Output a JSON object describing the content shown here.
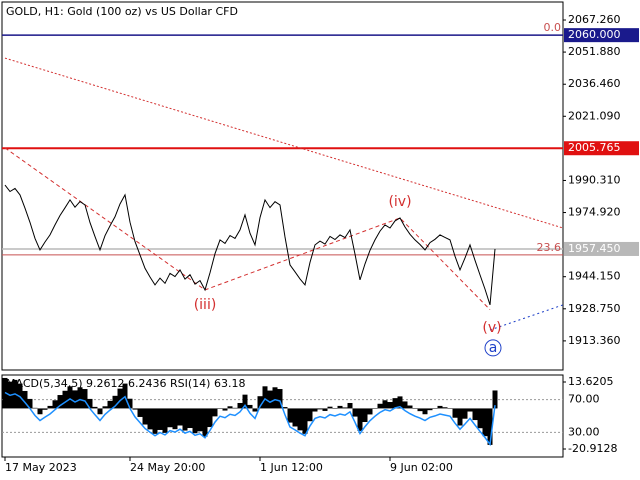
{
  "chart_data": [
    {
      "type": "line",
      "title": "GOLD, H1:  Gold (100 oz) vs US Dollar CFD",
      "color": "#000000",
      "x": [
        0,
        1,
        2,
        3,
        4,
        5,
        6,
        7,
        8,
        9,
        10,
        11,
        12,
        13,
        14,
        15,
        16,
        17,
        18,
        19,
        20,
        21,
        22,
        23,
        24,
        25,
        26,
        27,
        28,
        29,
        30,
        31,
        32,
        33,
        34,
        35,
        36,
        37,
        38,
        39,
        40,
        41,
        42,
        43,
        44,
        45,
        46,
        47,
        48,
        49,
        50,
        51,
        52,
        53,
        54,
        55,
        56,
        57,
        58,
        59,
        60,
        61,
        62,
        63,
        64,
        65,
        66,
        67,
        68,
        69,
        70,
        71,
        72,
        73,
        74,
        75,
        76,
        77,
        78,
        79,
        80,
        81,
        82,
        83,
        84,
        85,
        86,
        87,
        88,
        89,
        90,
        91,
        92,
        93,
        94,
        95,
        96,
        97,
        98
      ],
      "values": [
        1988.1,
        1985.0,
        1986.5,
        1983.4,
        1977.0,
        1970.2,
        1962.5,
        1957.0,
        1960.8,
        1964.2,
        1969.0,
        1973.5,
        1977.2,
        1981.0,
        1977.5,
        1980.2,
        1978.6,
        1970.1,
        1963.4,
        1957.0,
        1963.8,
        1968.5,
        1972.9,
        1979.0,
        1983.4,
        1970.3,
        1961.0,
        1954.6,
        1948.2,
        1944.0,
        1940.2,
        1943.5,
        1941.0,
        1945.8,
        1944.2,
        1947.4,
        1943.0,
        1945.1,
        1940.6,
        1942.3,
        1937.8,
        1946.0,
        1955.2,
        1961.8,
        1960.1,
        1963.9,
        1962.5,
        1966.6,
        1973.8,
        1965.0,
        1959.4,
        1972.5,
        1981.0,
        1977.3,
        1980.1,
        1978.6,
        1963.2,
        1949.8,
        1946.5,
        1943.1,
        1940.2,
        1951.0,
        1959.4,
        1961.2,
        1959.8,
        1963.5,
        1962.0,
        1964.2,
        1962.9,
        1966.6,
        1955.0,
        1942.6,
        1950.3,
        1956.8,
        1961.8,
        1966.0,
        1969.0,
        1967.5,
        1970.9,
        1972.3,
        1968.0,
        1964.5,
        1961.8,
        1959.6,
        1957.0,
        1960.5,
        1962.1,
        1964.2,
        1963.0,
        1961.8,
        1954.0,
        1947.4,
        1953.1,
        1959.4,
        1952.0,
        1945.0,
        1938.2,
        1930.6,
        1957.45
      ],
      "xlim": [
        -0.6,
        111.6
      ],
      "xticks": [
        {
          "value": 0,
          "label": "17 May 2023"
        },
        {
          "value": 25,
          "label": "24 May 20:00"
        },
        {
          "value": 51,
          "label": "1 Jun 12:00"
        },
        {
          "value": 77,
          "label": "9 Jun 02:00"
        }
      ],
      "ylim": [
        1899.4,
        2075.9
      ],
      "yticks": [
        {
          "value": 2067.26,
          "label": "2067.260"
        },
        {
          "value": 2051.88,
          "label": "2051.880"
        },
        {
          "value": 2036.46,
          "label": "2036.460"
        },
        {
          "value": 2021.09,
          "label": "2021.090"
        },
        {
          "value": 1990.31,
          "label": "1990.310"
        },
        {
          "value": 1974.92,
          "label": "1974.920"
        },
        {
          "value": 1944.15,
          "label": "1944.150"
        },
        {
          "value": 1928.75,
          "label": "1928.750"
        },
        {
          "value": 1913.36,
          "label": "1913.360"
        }
      ],
      "levels": [
        {
          "value": 2060,
          "label": "2060.000",
          "color": "#1a1a8c"
        },
        {
          "value": 2005.765,
          "label": "2005.765",
          "color": "#e01010"
        },
        {
          "value": 1957.45,
          "label": "1957.450",
          "color": "#b8b8b8"
        }
      ],
      "fib_levels": [
        {
          "value": 2060,
          "label": "0.0"
        },
        {
          "value": 1954.6,
          "label": "23.6"
        }
      ],
      "fib_color": "#c85050",
      "trendlines": [
        {
          "x": [
            0,
            111.6
          ],
          "y": [
            2049.0,
            1967.5
          ],
          "color": "#d32f2f",
          "dash": "2,2"
        },
        {
          "x": [
            0,
            40,
            79,
            97
          ],
          "y": [
            2005.9,
            1937.8,
            1972.3,
            1928.3
          ],
          "color": "#d32f2f",
          "dash": "4,3"
        },
        {
          "x": [
            97,
            111.6
          ],
          "y": [
            1918.6,
            1930.6
          ],
          "color": "#1e40c8",
          "dash": "2,3"
        }
      ],
      "annotations": [
        {
          "text": "(iii)",
          "x": 40,
          "y": 1930.6,
          "color": "#d32f2f"
        },
        {
          "text": "(iv)",
          "x": 79,
          "y": 1980.0,
          "color": "#d32f2f"
        },
        {
          "text": "(v)",
          "x": 97.4,
          "y": 1919.6,
          "color": "#d32f2f"
        },
        {
          "text": "a",
          "x": 97.6,
          "y": 1910.0,
          "color": "#1e40c8",
          "circle": true
        }
      ]
    },
    {
      "type": "indicator",
      "title": "MACD(5,34,5) 9.2612 6.2436 RSI(14) 63.18",
      "xlim": [
        -0.6,
        111.6
      ],
      "ylim": [
        -25.04,
        17.23
      ],
      "yticks": [
        13.6205,
        -20.9128
      ],
      "y2lim": [
        0,
        100
      ],
      "y2ticks": [
        {
          "value": 70,
          "label": "70.00"
        },
        {
          "value": 30,
          "label": "30.00"
        }
      ],
      "series": [
        {
          "color": "#000000",
          "values": [
            15.7,
            13.8,
            14.7,
            12.8,
            9.0,
            4.9,
            0.3,
            -3.0,
            -0.7,
            1.3,
            4.2,
            6.9,
            9.1,
            11.4,
            9.3,
            10.9,
            10.0,
            4.9,
            0.8,
            -3.0,
            1.1,
            3.9,
            6.5,
            10.2,
            12.8,
            5.0,
            -0.6,
            -4.4,
            -8.3,
            -10.8,
            -13.1,
            -11.1,
            -12.6,
            -9.7,
            -10.7,
            -8.8,
            -11.4,
            -10.1,
            -12.8,
            -11.8,
            -14.5,
            -9.6,
            -4.1,
            -0.1,
            -1.1,
            1.1,
            0.3,
            2.8,
            7.1,
            1.8,
            -1.6,
            6.3,
            11.4,
            9.2,
            10.9,
            10.0,
            0.7,
            -7.3,
            -9.3,
            -11.3,
            -13.1,
            -6.6,
            -1.6,
            -0.5,
            -1.3,
            0.9,
            0.0,
            1.3,
            0.5,
            2.8,
            -4.2,
            -11.6,
            -7.0,
            -3.1,
            -0.1,
            2.4,
            4.2,
            3.3,
            5.3,
            6.2,
            3.6,
            1.5,
            -0.1,
            -1.4,
            -3.0,
            -0.9,
            0.1,
            1.3,
            0.6,
            -0.1,
            -4.8,
            -8.8,
            -5.3,
            -1.6,
            -6.0,
            -10.2,
            -14.3,
            -18.8,
            9.26
          ]
        },
        {
          "color": "#1e90ff",
          "axis": "y2",
          "values": [
            78.7,
            75.3,
            77.0,
            73.5,
            66.5,
            59.0,
            50.6,
            44.5,
            48.7,
            52.4,
            57.7,
            62.7,
            66.7,
            70.9,
            67.1,
            70.0,
            68.3,
            58.9,
            51.5,
            44.5,
            52.0,
            57.2,
            62.0,
            68.7,
            73.5,
            59.1,
            48.9,
            41.9,
            34.8,
            30.2,
            26.0,
            29.7,
            26.9,
            32.2,
            30.4,
            33.9,
            29.1,
            31.4,
            26.5,
            28.3,
            23.4,
            32.4,
            42.5,
            49.8,
            47.9,
            52.1,
            50.6,
            55.1,
            63.0,
            53.3,
            47.1,
            61.6,
            70.9,
            66.8,
            69.9,
            68.3,
            51.3,
            36.6,
            33.0,
            29.2,
            26.0,
            37.9,
            47.1,
            49.1,
            47.6,
            51.7,
            50.0,
            52.4,
            51.0,
            55.1,
            42.3,
            28.7,
            37.1,
            44.3,
            49.8,
            54.4,
            57.7,
            56.1,
            59.8,
            61.3,
            56.6,
            52.8,
            49.8,
            47.4,
            44.5,
            48.4,
            50.1,
            52.4,
            51.1,
            49.8,
            41.2,
            33.9,
            40.2,
            47.1,
            39.0,
            31.3,
            23.8,
            15.5,
            63.18
          ]
        }
      ]
    }
  ]
}
